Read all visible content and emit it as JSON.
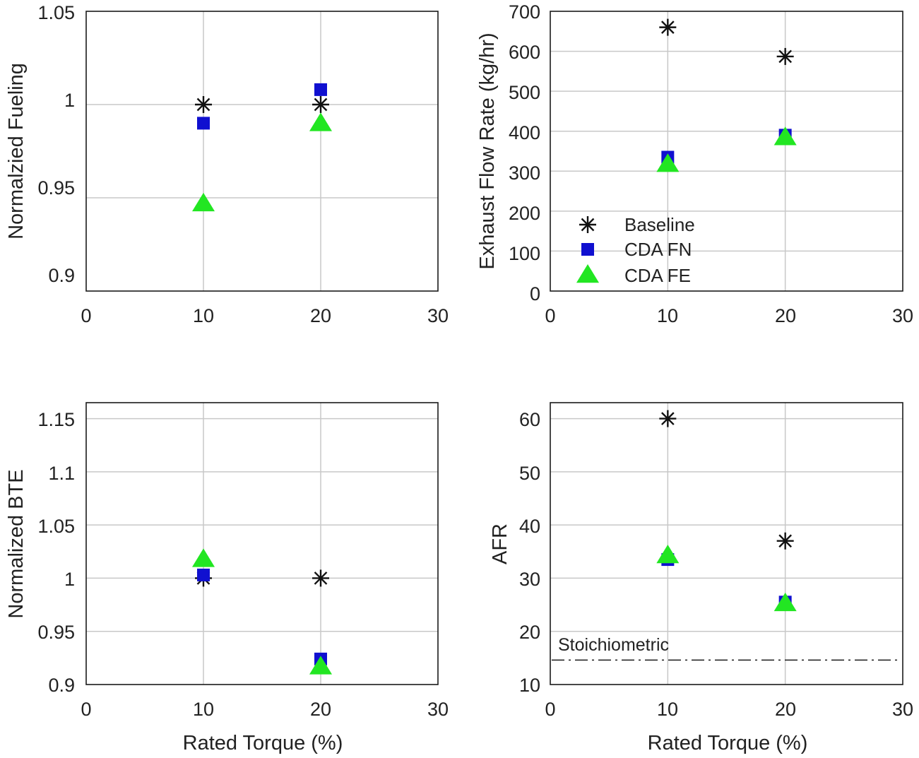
{
  "colors": {
    "baseline": "#111111",
    "cda_fn": "#1010d0",
    "cda_fe": "#22e622",
    "grid": "#c8c8c8",
    "axis": "#1a1a1a"
  },
  "legend": [
    {
      "key": "baseline",
      "label": "Baseline",
      "marker": "asterisk"
    },
    {
      "key": "cda_fn",
      "label": "CDA FN",
      "marker": "square"
    },
    {
      "key": "cda_fe",
      "label": "CDA FE",
      "marker": "triangle"
    }
  ],
  "chart_data": [
    {
      "id": "fueling",
      "type": "scatter",
      "title": "",
      "xlabel": "",
      "ylabel": "Normalzied Fueling",
      "xlim": [
        0,
        30
      ],
      "ylim": [
        0.9,
        1.05
      ],
      "xticks": [
        0,
        10,
        20,
        30
      ],
      "xtick_labels": [
        "0",
        "10",
        "20",
        "30"
      ],
      "yticks": [
        0.9,
        0.95,
        1.0,
        1.05
      ],
      "ytick_labels": [
        "0.9",
        "0.95",
        "1",
        "1.05"
      ],
      "grid": true,
      "series": [
        {
          "key": "baseline",
          "name": "Baseline",
          "x": [
            10,
            20
          ],
          "y": [
            1.0,
            1.0
          ]
        },
        {
          "key": "cda_fn",
          "name": "CDA FN",
          "x": [
            10,
            20
          ],
          "y": [
            0.99,
            1.008
          ]
        },
        {
          "key": "cda_fe",
          "name": "CDA FE",
          "x": [
            10,
            20
          ],
          "y": [
            0.947,
            0.99
          ]
        }
      ]
    },
    {
      "id": "exhaust-flow",
      "type": "scatter",
      "title": "",
      "xlabel": "",
      "ylabel": "Exhaust Flow Rate (kg/hr)",
      "xlim": [
        0,
        30
      ],
      "ylim": [
        0,
        700
      ],
      "xticks": [
        0,
        10,
        20,
        30
      ],
      "xtick_labels": [
        "0",
        "10",
        "20",
        "30"
      ],
      "yticks": [
        0,
        100,
        200,
        300,
        400,
        500,
        600,
        700
      ],
      "ytick_labels": [
        "0",
        "100",
        "200",
        "300",
        "400",
        "500",
        "600",
        "700"
      ],
      "grid": true,
      "legend": "lower-left",
      "series": [
        {
          "key": "baseline",
          "name": "Baseline",
          "x": [
            10,
            20
          ],
          "y": [
            660,
            587
          ]
        },
        {
          "key": "cda_fn",
          "name": "CDA FN",
          "x": [
            10,
            20
          ],
          "y": [
            335,
            390
          ]
        },
        {
          "key": "cda_fe",
          "name": "CDA FE",
          "x": [
            10,
            20
          ],
          "y": [
            318,
            385
          ]
        }
      ]
    },
    {
      "id": "bte",
      "type": "scatter",
      "title": "",
      "xlabel": "Rated Torque (%)",
      "ylabel": "Normalized BTE",
      "xlim": [
        0,
        30
      ],
      "ylim": [
        0.9,
        1.165
      ],
      "xticks": [
        0,
        10,
        20,
        30
      ],
      "xtick_labels": [
        "0",
        "10",
        "20",
        "30"
      ],
      "yticks": [
        0.9,
        0.95,
        1.0,
        1.05,
        1.1,
        1.15
      ],
      "ytick_labels": [
        "0.9",
        "0.95",
        "1",
        "1.05",
        "1.1",
        "1.15"
      ],
      "grid": true,
      "series": [
        {
          "key": "baseline",
          "name": "Baseline",
          "x": [
            10,
            20
          ],
          "y": [
            1.0,
            1.0
          ]
        },
        {
          "key": "cda_fn",
          "name": "CDA FN",
          "x": [
            10,
            20
          ],
          "y": [
            1.003,
            0.924
          ]
        },
        {
          "key": "cda_fe",
          "name": "CDA FE",
          "x": [
            10,
            20
          ],
          "y": [
            1.018,
            0.917
          ]
        }
      ]
    },
    {
      "id": "afr",
      "type": "scatter",
      "title": "",
      "xlabel": "Rated Torque (%)",
      "ylabel": "AFR",
      "xlim": [
        0,
        30
      ],
      "ylim": [
        10,
        63
      ],
      "xticks": [
        0,
        10,
        20,
        30
      ],
      "xtick_labels": [
        "0",
        "10",
        "20",
        "30"
      ],
      "yticks": [
        10,
        20,
        30,
        40,
        50,
        60
      ],
      "ytick_labels": [
        "10",
        "20",
        "30",
        "40",
        "50",
        "60"
      ],
      "grid": true,
      "series": [
        {
          "key": "baseline",
          "name": "Baseline",
          "x": [
            10,
            20
          ],
          "y": [
            60,
            37
          ]
        },
        {
          "key": "cda_fn",
          "name": "CDA FN",
          "x": [
            10,
            20
          ],
          "y": [
            33.5,
            25.5
          ]
        },
        {
          "key": "cda_fe",
          "name": "CDA FE",
          "x": [
            10,
            20
          ],
          "y": [
            34.3,
            25.3
          ]
        }
      ],
      "reference_line": {
        "y": 14.6,
        "label": "Stoichiometric",
        "style": "dash-dot"
      }
    }
  ]
}
